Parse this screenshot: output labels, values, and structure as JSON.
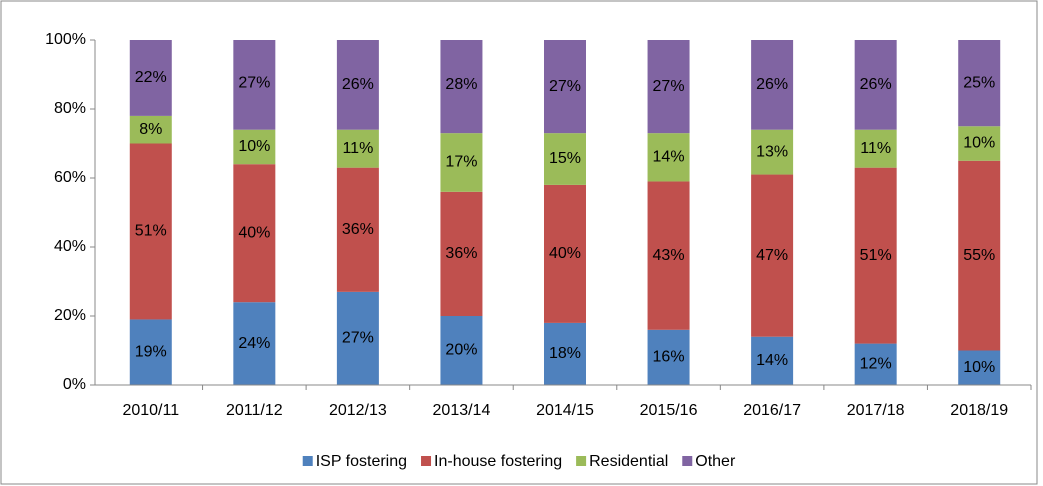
{
  "chart_data": {
    "type": "stacked_bar",
    "categories": [
      "2010/11",
      "2011/12",
      "2012/13",
      "2013/14",
      "2014/15",
      "2015/16",
      "2016/17",
      "2017/18",
      "2018/19"
    ],
    "series": [
      {
        "name": "ISP fostering",
        "color": "#4f81bd",
        "values": [
          19,
          24,
          27,
          20,
          18,
          16,
          14,
          12,
          10
        ],
        "value_labels": [
          "19%",
          "24%",
          "27%",
          "20%",
          "18%",
          "16%",
          "14%",
          "12%",
          "10%"
        ]
      },
      {
        "name": "In-house fostering",
        "color": "#c0504d",
        "values": [
          51,
          40,
          36,
          36,
          40,
          43,
          47,
          51,
          55
        ],
        "value_labels": [
          "51%",
          "40%",
          "36%",
          "36%",
          "40%",
          "43%",
          "47%",
          "51%",
          "55%"
        ]
      },
      {
        "name": "Residential",
        "color": "#9bbb59",
        "values": [
          8,
          10,
          11,
          17,
          15,
          14,
          13,
          11,
          10
        ],
        "value_labels": [
          "8%",
          "10%",
          "11%",
          "17%",
          "15%",
          "14%",
          "13%",
          "11%",
          "10%"
        ]
      },
      {
        "name": "Other",
        "color": "#8064a2",
        "values": [
          22,
          27,
          26,
          28,
          27,
          27,
          26,
          26,
          25
        ],
        "value_labels": [
          "22%",
          "27%",
          "26%",
          "28%",
          "27%",
          "27%",
          "26%",
          "26%",
          "25%"
        ]
      }
    ],
    "ylim": [
      0,
      100
    ],
    "yticks": [
      {
        "value": 0,
        "label": "0%"
      },
      {
        "value": 20,
        "label": "20%"
      },
      {
        "value": 40,
        "label": "40%"
      },
      {
        "value": 60,
        "label": "60%"
      },
      {
        "value": 80,
        "label": "80%"
      },
      {
        "value": 100,
        "label": "100%"
      }
    ],
    "legend": "bottom"
  }
}
